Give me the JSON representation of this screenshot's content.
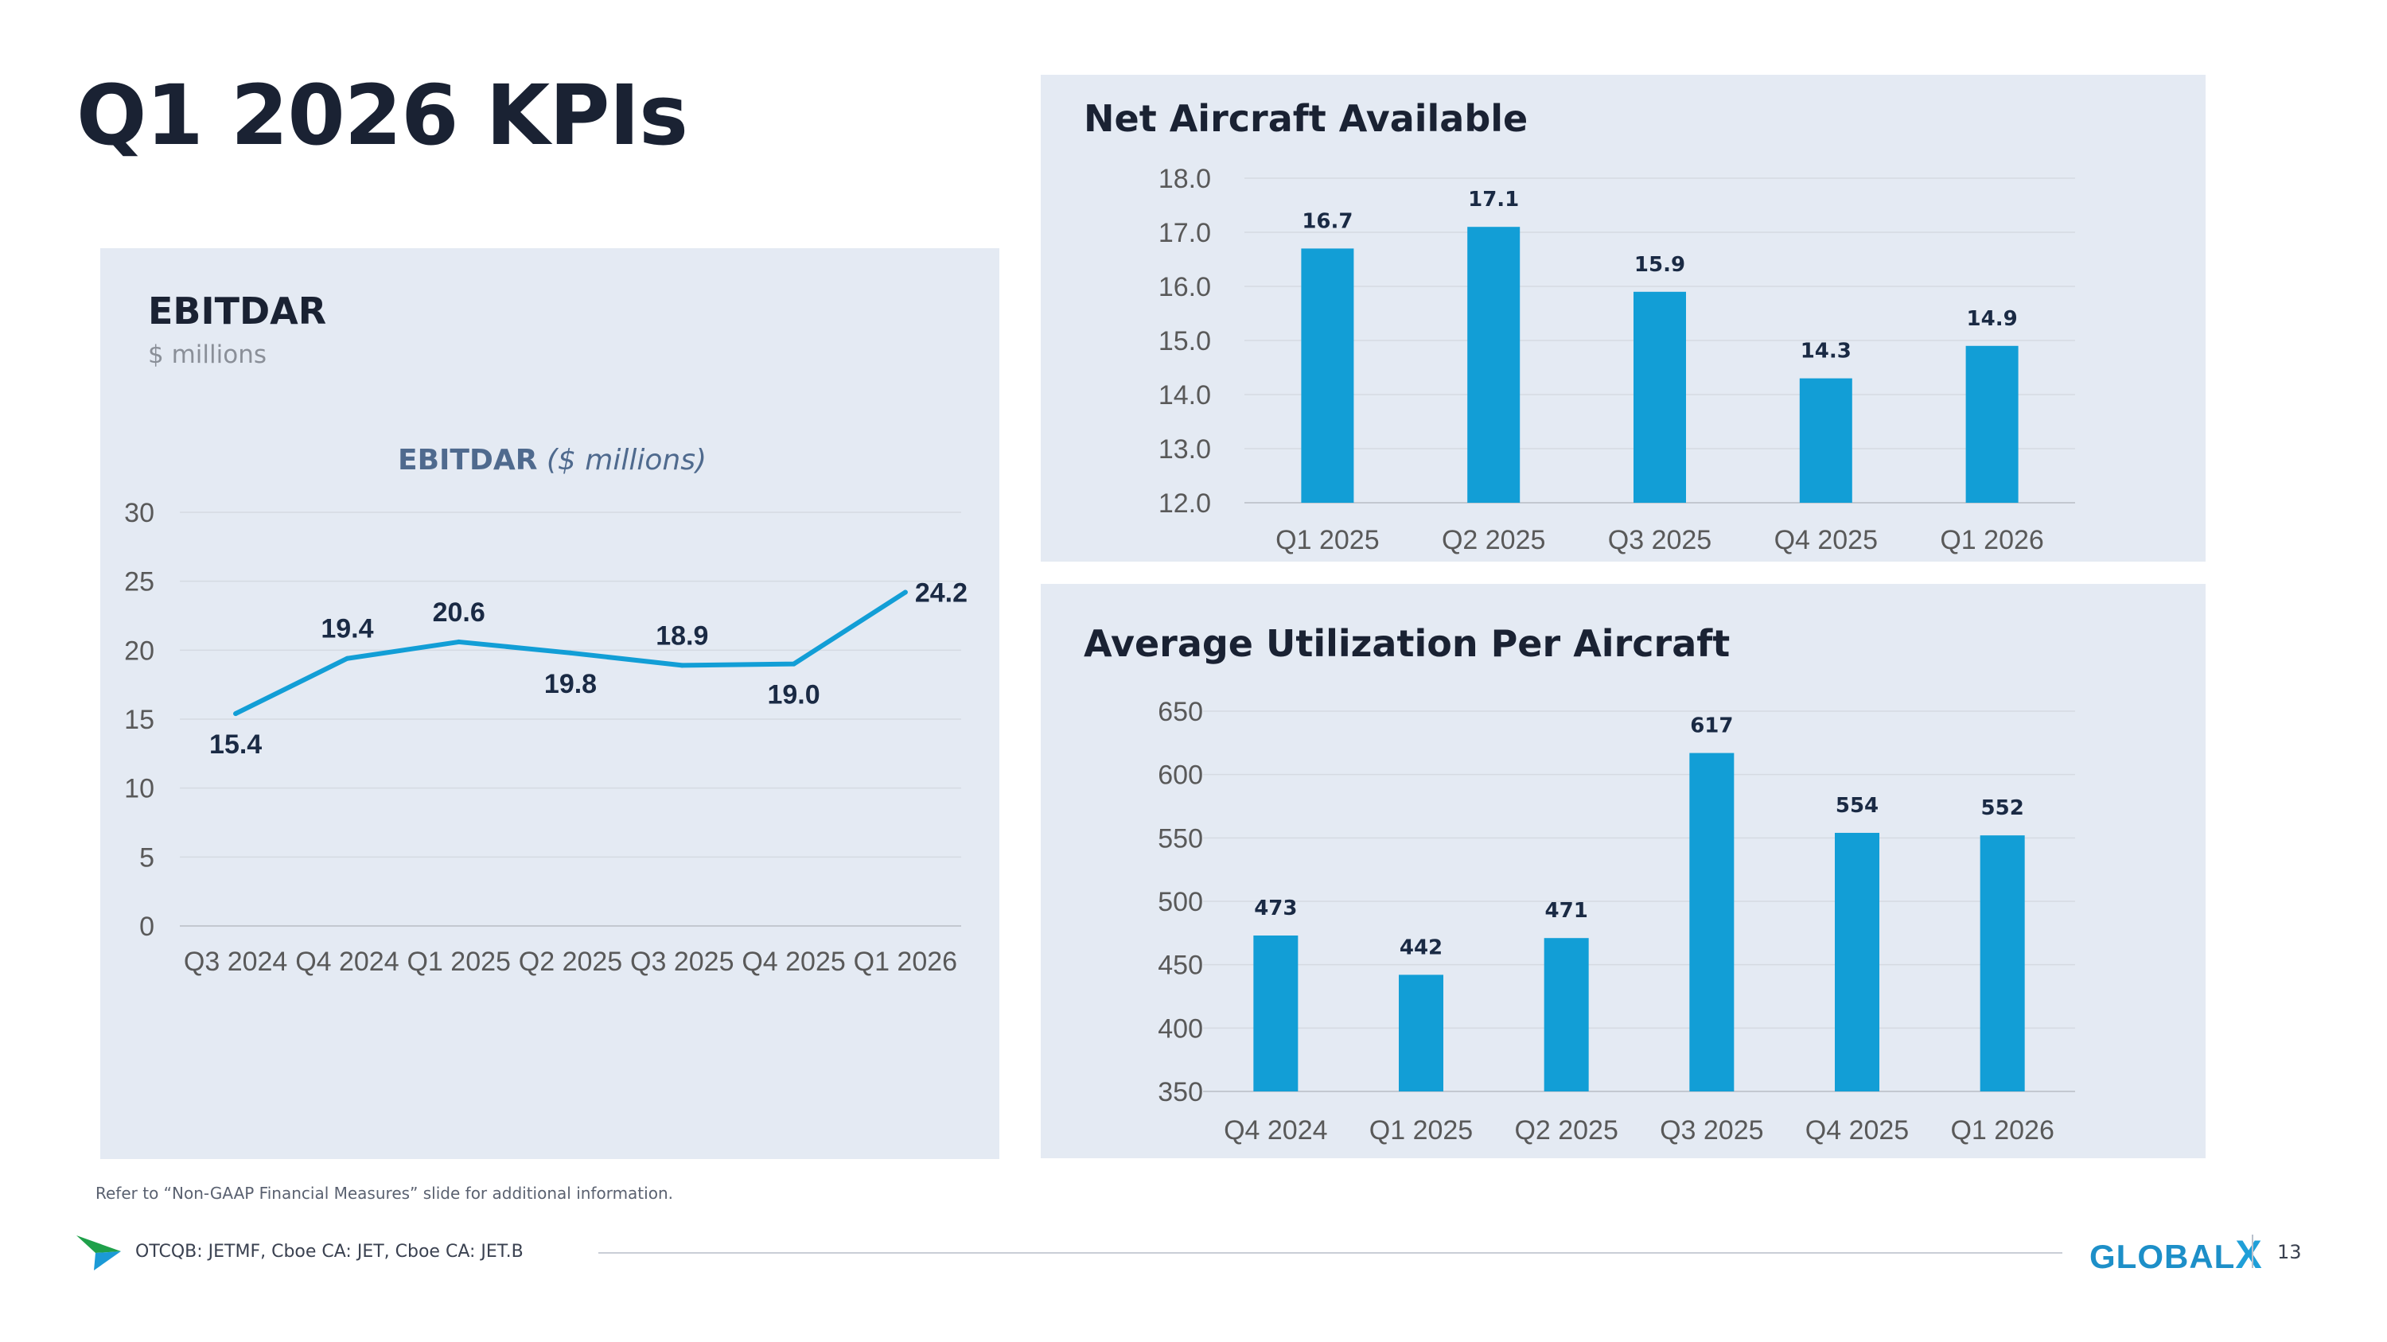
{
  "page": {
    "title": "Q1 2026 KPIs",
    "footnote": "Refer to “Non-GAAP Financial Measures” slide for additional information.",
    "ticker": "OTCQB: JETMF, Cboe CA: JET, Cboe CA: JET.B",
    "brand_main": "GLOBAL",
    "brand_x": "X",
    "page_number": "13",
    "colors": {
      "bar": "#129ed6",
      "line": "#129ed6",
      "panel": "#e4eaf3",
      "title": "#1a2233"
    }
  },
  "ebitdar": {
    "heading": "EBITDAR",
    "subheading": "$ millions",
    "chart_title_main": "EBITDAR",
    "chart_title_italic": "($ millions)"
  },
  "net_aircraft": {
    "heading": "Net Aircraft Available"
  },
  "utilization": {
    "heading": "Average Utilization Per Aircraft"
  },
  "chart_data": [
    {
      "id": "ebitdar",
      "type": "line",
      "title": "EBITDAR ($ millions)",
      "categories": [
        "Q3 2024",
        "Q4 2024",
        "Q1 2025",
        "Q2 2025",
        "Q3 2025",
        "Q4 2025",
        "Q1 2026"
      ],
      "values": [
        15.4,
        19.4,
        20.6,
        19.8,
        18.9,
        19.0,
        24.2
      ],
      "value_labels": [
        "15.4",
        "19.4",
        "20.6",
        "19.8",
        "18.9",
        "19.0",
        "24.2"
      ],
      "ylim": [
        0,
        30
      ],
      "yticks": [
        "0",
        "5",
        "10",
        "15",
        "20",
        "25",
        "30"
      ],
      "ytick_values": [
        0,
        5,
        10,
        15,
        20,
        25,
        30
      ],
      "grid": true,
      "legend": "none"
    },
    {
      "id": "net_aircraft",
      "type": "bar",
      "title": "Net Aircraft Available",
      "categories": [
        "Q1 2025",
        "Q2 2025",
        "Q3 2025",
        "Q4 2025",
        "Q1 2026"
      ],
      "values": [
        16.7,
        17.1,
        15.9,
        14.3,
        14.9
      ],
      "value_labels": [
        "16.7",
        "17.1",
        "15.9",
        "14.3",
        "14.9"
      ],
      "ylim": [
        12,
        18
      ],
      "yticks": [
        "12.0",
        "13.0",
        "14.0",
        "15.0",
        "16.0",
        "17.0",
        "18.0"
      ],
      "ytick_values": [
        12,
        13,
        14,
        15,
        16,
        17,
        18
      ],
      "grid": true,
      "legend": "none"
    },
    {
      "id": "utilization",
      "type": "bar",
      "title": "Average Utilization Per Aircraft",
      "categories": [
        "Q4 2024",
        "Q1 2025",
        "Q2 2025",
        "Q3 2025",
        "Q4 2025",
        "Q1 2026"
      ],
      "values": [
        473,
        442,
        471,
        617,
        554,
        552
      ],
      "value_labels": [
        "473",
        "442",
        "471",
        "617",
        "554",
        "552"
      ],
      "ylim": [
        350,
        650
      ],
      "yticks": [
        "350",
        "400",
        "450",
        "500",
        "550",
        "600",
        "650"
      ],
      "ytick_values": [
        350,
        400,
        450,
        500,
        550,
        600,
        650
      ],
      "grid": true,
      "legend": "none"
    }
  ]
}
